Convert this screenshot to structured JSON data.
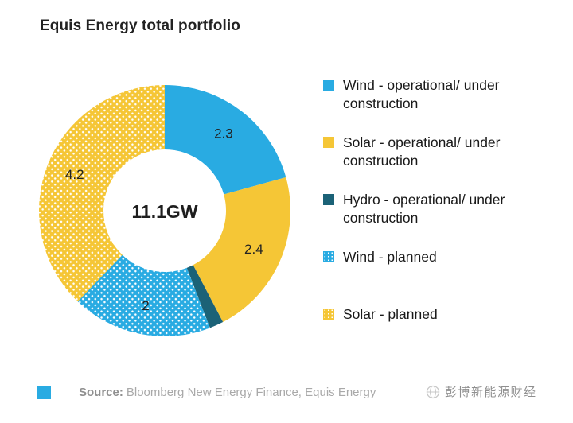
{
  "title": "Equis Energy total portfolio",
  "chart_data": {
    "type": "donut",
    "title": "Equis Energy total portfolio",
    "center_label": "11.1GW",
    "total": 11.1,
    "unit": "GW",
    "legend_position": "right",
    "segments": [
      {
        "name": "Wind - operational/ under construction",
        "value": 2.3,
        "label": "2.3",
        "color": "#29ABE2",
        "pattern": "solid"
      },
      {
        "name": "Solar - operational/ under construction",
        "value": 2.4,
        "label": "2.4",
        "color": "#F5C636",
        "pattern": "solid"
      },
      {
        "name": "Hydro - operational/ under construction",
        "value": 0.2,
        "label": "",
        "color": "#1B6277",
        "pattern": "solid"
      },
      {
        "name": "Wind - planned",
        "value": 2,
        "label": "2",
        "color": "#29ABE2",
        "pattern": "dots"
      },
      {
        "name": "Solar - planned",
        "value": 4.2,
        "label": "4.2",
        "color": "#F5C636",
        "pattern": "dots"
      }
    ]
  },
  "source": {
    "label": "Source:",
    "text": "Bloomberg New Energy Finance, Equis Energy",
    "swatch_color": "#29ABE2"
  },
  "watermark": {
    "text": "彭博新能源财经"
  }
}
